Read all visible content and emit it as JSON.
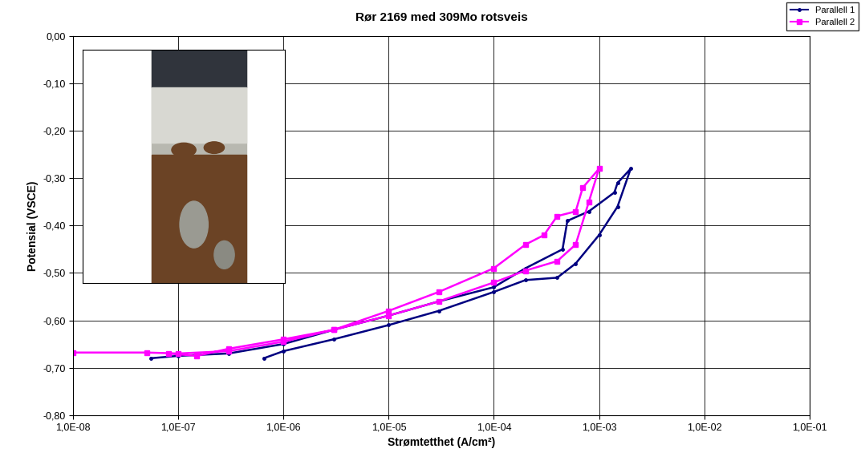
{
  "chart_data": {
    "type": "line",
    "title": "Rør 2169 med 309Mo rotsveis",
    "x_label": "Strømtetthet (A/cm²)",
    "y_label": "Potensial (VSCE)",
    "log": "x",
    "grid": true,
    "legend": "upper right",
    "xlim": [
      1e-08,
      0.1
    ],
    "ylim": [
      -0.8,
      0.0
    ],
    "xticks": [
      {
        "value": 1e-08,
        "label": "1,0E-08"
      },
      {
        "value": 1e-07,
        "label": "1,0E-07"
      },
      {
        "value": 1e-06,
        "label": "1,0E-06"
      },
      {
        "value": 1e-05,
        "label": "1,0E-05"
      },
      {
        "value": 0.0001,
        "label": "1,0E-04"
      },
      {
        "value": 0.001,
        "label": "1,0E-03"
      },
      {
        "value": 0.01,
        "label": "1,0E-02"
      },
      {
        "value": 0.1,
        "label": "1,0E-01"
      }
    ],
    "yticks": [
      {
        "value": -0.8,
        "label": "-0,80"
      },
      {
        "value": -0.7,
        "label": "-0,70"
      },
      {
        "value": -0.6,
        "label": "-0,60"
      },
      {
        "value": -0.5,
        "label": "-0,50"
      },
      {
        "value": -0.4,
        "label": "-0,40"
      },
      {
        "value": -0.3,
        "label": "-0,30"
      },
      {
        "value": -0.2,
        "label": "-0,20"
      },
      {
        "value": -0.1,
        "label": "-0,10"
      },
      {
        "value": 0.0,
        "label": "0,00"
      }
    ],
    "series": [
      {
        "name": "Parallell 1",
        "color": "#000080",
        "marker": "point",
        "line_style": "solid",
        "x": [
          6.5e-07,
          1e-06,
          3e-06,
          1e-05,
          3e-05,
          0.0001,
          0.0002,
          0.0004,
          0.0006,
          0.001,
          0.0015,
          0.002,
          0.0015,
          0.0014,
          0.0008,
          0.0005,
          0.00045,
          0.0002,
          0.0001,
          3e-05,
          1e-05,
          3e-06,
          1e-06,
          3e-07,
          1e-07,
          5.5e-08
        ],
        "values": [
          -0.68,
          -0.665,
          -0.64,
          -0.61,
          -0.58,
          -0.54,
          -0.515,
          -0.51,
          -0.48,
          -0.42,
          -0.36,
          -0.28,
          -0.31,
          -0.33,
          -0.37,
          -0.39,
          -0.45,
          -0.49,
          -0.53,
          -0.56,
          -0.59,
          -0.62,
          -0.65,
          -0.67,
          -0.675,
          -0.68
        ]
      },
      {
        "name": "Parallell 2",
        "color": "#ff00ff",
        "marker": "square",
        "line_style": "solid",
        "x": [
          1e-08,
          5e-08,
          1e-07,
          3e-07,
          1e-06,
          3e-06,
          1e-05,
          3e-05,
          0.0001,
          0.0002,
          0.0004,
          0.0006,
          0.0008,
          0.001,
          0.0007,
          0.0006,
          0.0004,
          0.0003,
          0.0002,
          0.0001,
          3e-05,
          1e-05,
          3e-06,
          1e-06,
          3e-07,
          1.5e-07,
          8e-08
        ],
        "values": [
          -0.668,
          -0.668,
          -0.67,
          -0.665,
          -0.645,
          -0.62,
          -0.59,
          -0.56,
          -0.52,
          -0.495,
          -0.475,
          -0.44,
          -0.35,
          -0.28,
          -0.32,
          -0.37,
          -0.38,
          -0.42,
          -0.44,
          -0.49,
          -0.54,
          -0.58,
          -0.62,
          -0.64,
          -0.66,
          -0.675,
          -0.67
        ]
      }
    ]
  }
}
